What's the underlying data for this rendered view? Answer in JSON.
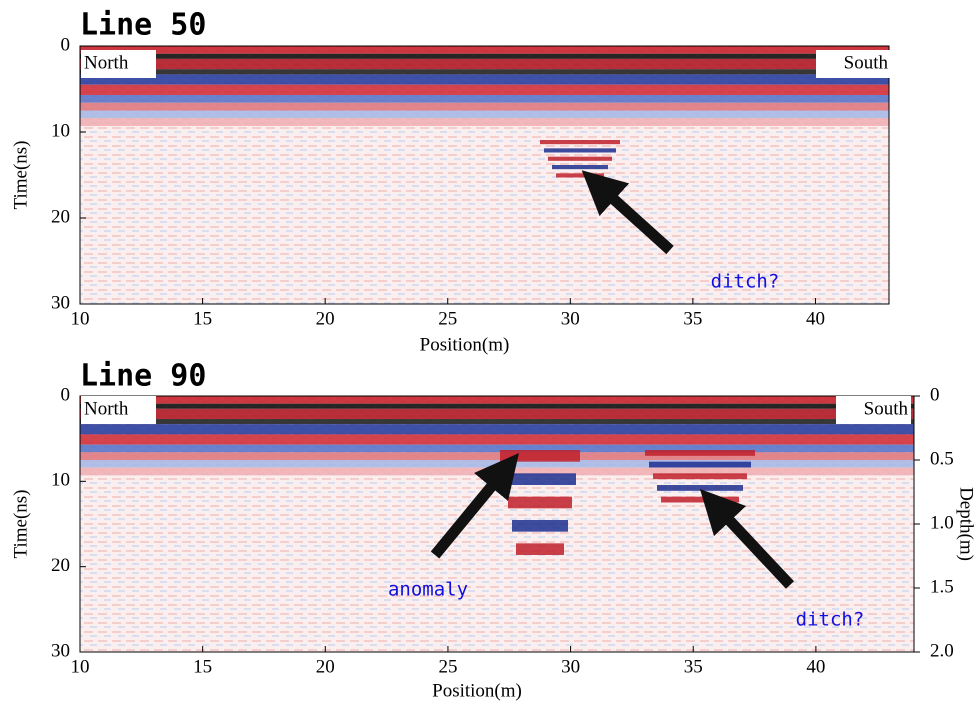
{
  "chart_data": [
    {
      "type": "radargram",
      "title": "Line 50",
      "xlabel": "Position(m)",
      "ylabel": "Time(ns)",
      "xlim": [
        10,
        43
      ],
      "xticks": [
        10,
        15,
        20,
        25,
        30,
        35,
        40
      ],
      "ylim": [
        0,
        30
      ],
      "yticks": [
        0,
        10,
        20,
        30
      ],
      "annotations": [
        "North",
        "South",
        "ditch?"
      ]
    },
    {
      "type": "radargram",
      "title": "Line 90",
      "xlabel": "Position(m)",
      "ylabel": "Time(ns)",
      "y2label": "Depth(m)",
      "xlim": [
        10,
        44
      ],
      "xticks": [
        10,
        15,
        20,
        25,
        30,
        35,
        40
      ],
      "ylim": [
        0,
        30
      ],
      "yticks": [
        0,
        10,
        20,
        30
      ],
      "y2lim": [
        0,
        2
      ],
      "y2ticks": [
        0,
        0.5,
        {
          "value": 1,
          "label": "1.0"
        },
        1.5,
        {
          "value": 2,
          "label": "2.0"
        }
      ],
      "annotations": [
        "North",
        "South",
        "anomaly",
        "ditch?"
      ]
    }
  ]
}
